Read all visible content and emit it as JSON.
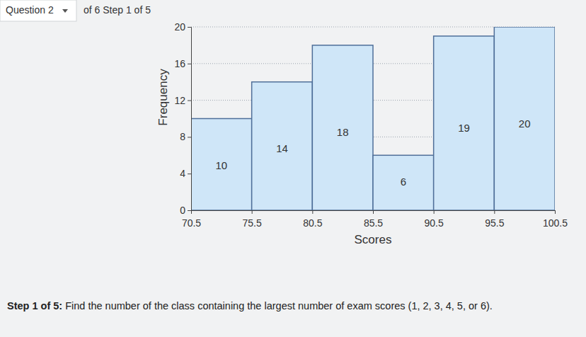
{
  "header": {
    "question": "Question 2",
    "progress": "of 6 Step 1 of 5"
  },
  "prompt": {
    "label": "Step 1 of 5:",
    "text": "Find the number of the class containing the largest number of exam scores (1, 2, 3, 4, 5, or 6)."
  },
  "chart_data": {
    "type": "histogram",
    "x_label": "Scores",
    "y_label": "Frequency",
    "bins": [
      70.5,
      75.5,
      80.5,
      85.5,
      90.5,
      95.5,
      100.5
    ],
    "values": [
      10,
      14,
      18,
      6,
      19,
      20
    ],
    "color": "#cfe6f8",
    "xlim": [
      70.5,
      100.5
    ],
    "xticks": [
      70.5,
      75.5,
      80.5,
      85.5,
      90.5,
      95.5,
      100.5
    ],
    "ylim": [
      0,
      20
    ],
    "yticks": [
      0,
      4,
      8,
      12,
      16,
      20
    ],
    "grid": true,
    "data_labels": true
  }
}
